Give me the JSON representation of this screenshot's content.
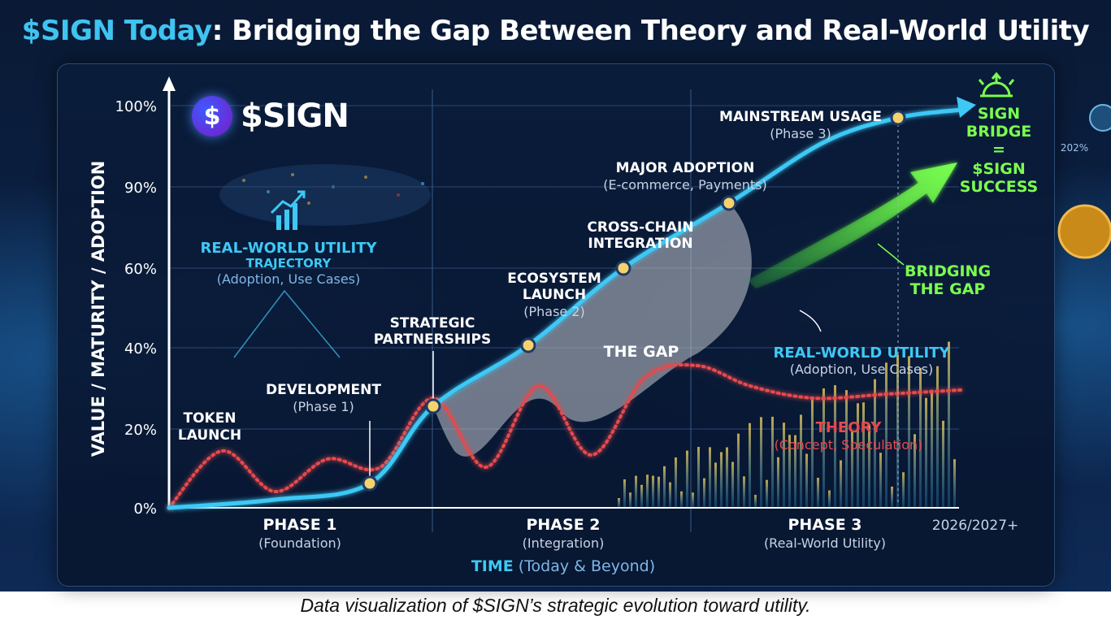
{
  "title_accent": "$SIGN Today",
  "title_rest": ": Bridging the Gap Between Theory and Real-World Utility",
  "caption": "Data visualization of $SIGN’s strategic evolution toward utility.",
  "logo_text": "$SIGN",
  "logo_glyph": "$",
  "colors": {
    "utility": "#3ec8f5",
    "theory": "#e8484c",
    "gap": "#9aa3ad",
    "bridge": "#6cf04a",
    "milestone": "#f5d36a"
  },
  "chart_data": {
    "type": "line",
    "ylabel": "VALUE / MATURITY / ADOPTION",
    "yticks": [
      "0%",
      "20%",
      "40%",
      "60%",
      "90%",
      "100%"
    ],
    "xlabel_main": "TIME",
    "xlabel_sub": "(Today & Beyond)",
    "phases": [
      {
        "name": "PHASE 1",
        "sub": "(Foundation)"
      },
      {
        "name": "PHASE 2",
        "sub": "(Integration)"
      },
      {
        "name": "PHASE 3",
        "sub": "(Real-World Utility)"
      }
    ],
    "x_end_label": "2026/2027+",
    "series": [
      {
        "name": "REAL-WORLD UTILITY",
        "sub": "(Adoption, Use Cases)",
        "x": [
          0,
          0.2,
          0.38,
          0.5,
          0.68,
          0.86,
          1.06,
          1.24,
          1.38,
          1.5
        ],
        "values": [
          0,
          2,
          6,
          25,
          40,
          59,
          75,
          90,
          96,
          98
        ]
      },
      {
        "name": "THEORY",
        "sub": "(Concept, Speculation)",
        "x": [
          0,
          0.1,
          0.2,
          0.3,
          0.4,
          0.5,
          0.6,
          0.7,
          0.8,
          0.9,
          1.0,
          1.1,
          1.22,
          1.36,
          1.5
        ],
        "values": [
          0,
          14,
          4,
          12,
          10,
          27,
          10,
          30,
          13,
          32,
          35,
          30,
          27,
          28,
          29
        ]
      }
    ],
    "milestones": [
      {
        "label": "DEVELOPMENT",
        "sub": "(Phase 1)"
      },
      {
        "label": "STRATEGIC",
        "label2": "PARTNERSHIPS"
      },
      {
        "label": "ECOSYSTEM",
        "label2": "LAUNCH",
        "sub": "(Phase 2)"
      },
      {
        "label": "CROSS-CHAIN",
        "label2": "INTEGRATION"
      },
      {
        "label": "MAJOR ADOPTION",
        "sub": "(E-commerce, Payments)"
      },
      {
        "label": "MAINSTREAM USAGE",
        "sub": "(Phase 3)"
      }
    ],
    "annotations": {
      "token_launch_1": "TOKEN",
      "token_launch_2": "LAUNCH",
      "gap": "THE GAP",
      "utility_traj_1": "REAL-WORLD UTILITY",
      "utility_traj_2": "TRAJECTORY",
      "utility_traj_3": "(Adoption, Use Cases)",
      "bridging_1": "BRIDGING",
      "bridging_2": "THE GAP",
      "bridge_1": "SIGN",
      "bridge_2": "BRIDGE",
      "bridge_3": "=",
      "bridge_4": "$SIGN",
      "bridge_5": "SUCCESS",
      "side_pct": "202%"
    }
  }
}
